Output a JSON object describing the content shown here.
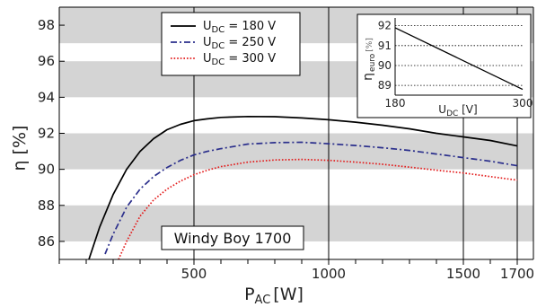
{
  "chart_data": [
    {
      "type": "line",
      "xlabel": {
        "main": "P",
        "sub": "AC",
        "unit": "[W]"
      },
      "ylabel": {
        "main": "η",
        "unit": "[%]"
      },
      "xlim": [
        0,
        1760
      ],
      "ylim": [
        85,
        99
      ],
      "x_ticks": [
        500,
        1000,
        1500,
        1700
      ],
      "y_ticks": [
        86,
        88,
        90,
        92,
        94,
        96,
        98
      ],
      "grid": "horizontal grey bands, vertical lines at x ticks",
      "band_color": "#d4d4d4",
      "annotation": "Windy Boy 1700",
      "legend": {
        "placement": "top-center"
      },
      "series": [
        {
          "name": "U_DC = 180 V",
          "name_main": "U",
          "name_sub": "DC",
          "name_rest": " = 180 V",
          "color": "#000000",
          "style": "solid",
          "x": [
            110,
            150,
            200,
            250,
            300,
            350,
            400,
            450,
            500,
            550,
            600,
            700,
            800,
            900,
            1000,
            1100,
            1200,
            1300,
            1400,
            1500,
            1600,
            1700
          ],
          "y": [
            85,
            86.8,
            88.6,
            90.0,
            91.0,
            91.7,
            92.2,
            92.5,
            92.7,
            92.8,
            92.88,
            92.93,
            92.92,
            92.85,
            92.75,
            92.62,
            92.45,
            92.25,
            92.0,
            91.8,
            91.6,
            91.3
          ]
        },
        {
          "name": "U_DC = 250 V",
          "name_main": "U",
          "name_sub": "DC",
          "name_rest": " = 250 V",
          "color": "#2b2f8c",
          "style": "dashdot",
          "x": [
            170,
            200,
            250,
            300,
            350,
            400,
            450,
            500,
            550,
            600,
            700,
            800,
            900,
            1000,
            1100,
            1200,
            1300,
            1400,
            1500,
            1600,
            1700
          ],
          "y": [
            85.3,
            86.4,
            87.9,
            88.9,
            89.6,
            90.1,
            90.5,
            90.8,
            91.0,
            91.15,
            91.4,
            91.48,
            91.5,
            91.42,
            91.32,
            91.2,
            91.05,
            90.85,
            90.65,
            90.45,
            90.2
          ]
        },
        {
          "name": "U_DC = 300 V",
          "name_main": "U",
          "name_sub": "DC",
          "name_rest": " = 300 V",
          "color": "#e31c1c",
          "style": "dotted",
          "x": [
            220,
            250,
            300,
            350,
            400,
            450,
            500,
            550,
            600,
            700,
            800,
            900,
            1000,
            1100,
            1200,
            1300,
            1400,
            1500,
            1600,
            1700
          ],
          "y": [
            85,
            86.0,
            87.4,
            88.3,
            88.9,
            89.35,
            89.7,
            89.95,
            90.15,
            90.4,
            90.52,
            90.55,
            90.5,
            90.4,
            90.28,
            90.12,
            89.95,
            89.8,
            89.6,
            89.4
          ]
        }
      ]
    },
    {
      "type": "line",
      "xlabel": {
        "main": "U",
        "sub": "DC",
        "unit": " [V]"
      },
      "ylabel": {
        "main": "η",
        "sub": "euro",
        "unit": "[%]"
      },
      "xlim": [
        180,
        300
      ],
      "ylim": [
        88.6,
        92.3
      ],
      "x_ticks": [
        180,
        300
      ],
      "y_ticks": [
        89,
        90,
        91,
        92
      ],
      "grid": "horizontal dotted lines",
      "series": [
        {
          "color": "#000000",
          "x": [
            180,
            300
          ],
          "y": [
            91.9,
            88.8
          ]
        }
      ]
    }
  ]
}
